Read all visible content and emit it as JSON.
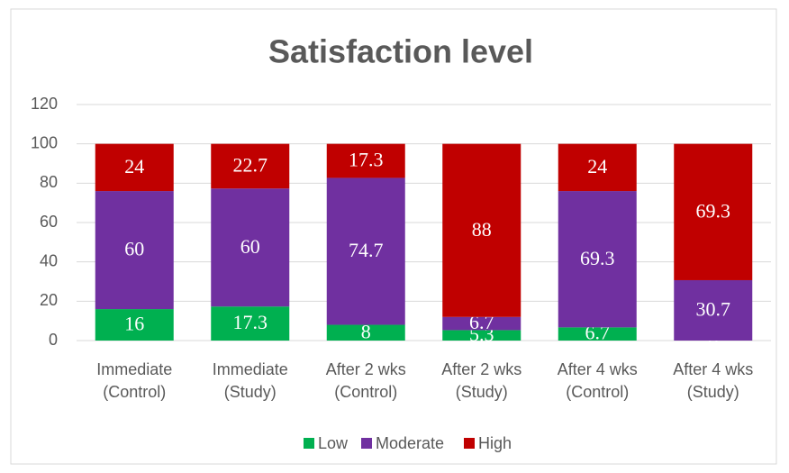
{
  "chart_data": {
    "type": "stacked_bar",
    "title": "Satisfaction level",
    "categories": [
      "Immediate\n(Control)",
      "Immediate\n(Study)",
      "After 2 wks\n(Control)",
      "After 2 wks\n(Study)",
      "After 4 wks\n(Control)",
      "After 4 wks\n(Study)"
    ],
    "series": [
      {
        "name": "Low",
        "color": "#00b050",
        "values": [
          16,
          17.3,
          8,
          5.3,
          6.7,
          0
        ]
      },
      {
        "name": "Moderate",
        "color": "#7030a0",
        "values": [
          60,
          60,
          74.7,
          6.7,
          69.3,
          30.7
        ]
      },
      {
        "name": "High",
        "color": "#c00000",
        "values": [
          24,
          22.7,
          17.3,
          88,
          24,
          69.3
        ]
      }
    ],
    "ylim": [
      0,
      120
    ],
    "yticks": [
      0,
      20,
      40,
      60,
      80,
      100,
      120
    ],
    "grid": true,
    "legend": "bottom"
  }
}
